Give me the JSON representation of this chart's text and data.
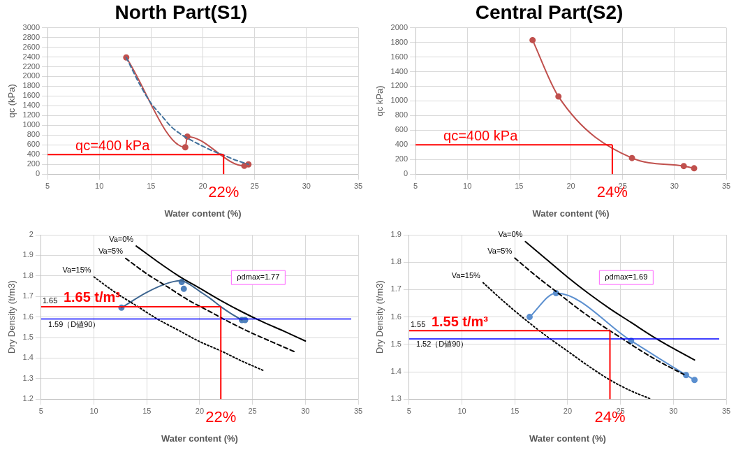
{
  "chart_data": [
    {
      "type": "line",
      "title": "North Part(S1)",
      "xlabel": "Water content (%)",
      "ylabel": "qc (kPa)",
      "xlim": [
        5,
        35
      ],
      "xticks": [
        5,
        10,
        15,
        20,
        25,
        30,
        35
      ],
      "ylim": [
        0,
        3000
      ],
      "yticks": [
        0,
        200,
        400,
        600,
        800,
        1000,
        1200,
        1400,
        1600,
        1800,
        2000,
        2200,
        2400,
        2600,
        2800,
        3000
      ],
      "grid": true,
      "series": [
        {
          "color": "#41719c",
          "marker": "none",
          "line_style": "dashed",
          "x": [
            12.6,
            14,
            15,
            16,
            17,
            18,
            19,
            20,
            21,
            22,
            23,
            24.4
          ],
          "values": [
            2390,
            1800,
            1450,
            1200,
            960,
            800,
            680,
            570,
            470,
            390,
            300,
            200
          ]
        },
        {
          "color": "#c0504d",
          "marker": "circle",
          "line_style": "solid",
          "x": [
            12.6,
            18.3,
            18.5,
            24.0,
            24.4
          ],
          "values": [
            2390,
            550,
            770,
            170,
            200
          ]
        }
      ],
      "ref_lines": [
        {
          "axis": "y",
          "value": 400,
          "label": "qc=400 kPa",
          "color": "#ff0000"
        },
        {
          "axis": "x",
          "value": 22,
          "label": "22%",
          "color": "#ff0000"
        }
      ]
    },
    {
      "type": "line",
      "title": "Central Part(S2)",
      "xlabel": "Water content (%)",
      "ylabel": "qc kPa)",
      "xlim": [
        5,
        35
      ],
      "xticks": [
        5,
        10,
        15,
        20,
        25,
        30,
        35
      ],
      "ylim": [
        0,
        2000
      ],
      "yticks": [
        0,
        200,
        400,
        600,
        800,
        1000,
        1200,
        1400,
        1600,
        1800,
        2000
      ],
      "grid": true,
      "series": [
        {
          "color": "#c0504d",
          "marker": "circle",
          "line_style": "solid",
          "x": [
            16.3,
            18.8,
            25.9,
            30.9,
            31.9
          ],
          "values": [
            1830,
            1060,
            220,
            110,
            80
          ]
        }
      ],
      "ref_lines": [
        {
          "axis": "y",
          "value": 400,
          "label": "qc=400 kPa",
          "color": "#ff0000"
        },
        {
          "axis": "x",
          "value": 24,
          "label": "24%",
          "color": "#ff0000"
        }
      ]
    },
    {
      "type": "scatter",
      "xlabel": "Water content (%)",
      "ylabel": "Dry Density (t/m3)",
      "xlim": [
        5,
        35
      ],
      "xticks": [
        5,
        10,
        15,
        20,
        25,
        30,
        35
      ],
      "ylim": [
        1.2,
        2
      ],
      "yticks": [
        1.2,
        1.3,
        1.4,
        1.5,
        1.6,
        1.7,
        1.8,
        1.9,
        2
      ],
      "grid": true,
      "series": [
        {
          "type": "line",
          "name": "Va=0%",
          "color": "#000000",
          "marker": "none",
          "line_style": "solid",
          "x": [
            14,
            16,
            18,
            20,
            22,
            24,
            26,
            28,
            30
          ],
          "values": [
            1.945,
            1.87,
            1.8,
            1.74,
            1.68,
            1.625,
            1.575,
            1.53,
            1.483
          ]
        },
        {
          "type": "line",
          "name": "Va=5%",
          "color": "#000000",
          "marker": "none",
          "line_style": "dashed",
          "x": [
            13,
            15,
            17,
            19,
            21,
            23,
            25,
            27,
            29
          ],
          "values": [
            1.885,
            1.81,
            1.745,
            1.68,
            1.625,
            1.57,
            1.52,
            1.475,
            1.43
          ]
        },
        {
          "type": "line",
          "name": "Va=15%",
          "color": "#000000",
          "marker": "none",
          "line_style": "dotted",
          "x": [
            10,
            12,
            14,
            16,
            18,
            20,
            22,
            24,
            26
          ],
          "values": [
            1.795,
            1.72,
            1.655,
            1.59,
            1.535,
            1.48,
            1.435,
            1.385,
            1.34
          ]
        },
        {
          "type": "line",
          "color": "#3d6590",
          "marker": "none",
          "line_style": "solid",
          "x": [
            12.6,
            15,
            17,
            18.2,
            19,
            20,
            21,
            22,
            23,
            24.0
          ],
          "values": [
            1.645,
            1.72,
            1.765,
            1.777,
            1.76,
            1.725,
            1.69,
            1.65,
            1.615,
            1.585
          ]
        },
        {
          "type": "scatter",
          "color": "#4f81bd",
          "marker": "circle",
          "x": [
            12.6,
            18.3,
            18.5,
            24.0,
            24.3
          ],
          "values": [
            1.645,
            1.77,
            1.737,
            1.585,
            1.585
          ]
        }
      ],
      "ref_lines": [
        {
          "axis": "y",
          "value": 1.59,
          "label": "1.59（D値90）",
          "color": "#0000ff"
        },
        {
          "axis": "y",
          "value": 1.65,
          "label": "1.65 t/m³",
          "color": "#ff0000"
        },
        {
          "axis": "x",
          "value": 22,
          "label": "22%",
          "color": "#ff0000"
        }
      ],
      "annotations": [
        {
          "text": "1.65",
          "x": 5,
          "y": 1.65
        },
        "ρdmax=1.77"
      ]
    },
    {
      "type": "line",
      "xlabel": "Water content (%)",
      "ylabel": "Dry Density (t/m3)",
      "xlim": [
        5,
        35
      ],
      "xticks": [
        5,
        10,
        15,
        20,
        25,
        30,
        35
      ],
      "ylim": [
        1.3,
        1.9
      ],
      "yticks": [
        1.3,
        1.4,
        1.5,
        1.6,
        1.7,
        1.8,
        1.9
      ],
      "grid": true,
      "series": [
        {
          "name": "Va=0%",
          "color": "#000000",
          "marker": "none",
          "line_style": "solid",
          "x": [
            16,
            18,
            20,
            22,
            24,
            26,
            28,
            30,
            32
          ],
          "values": [
            1.875,
            1.81,
            1.745,
            1.685,
            1.63,
            1.58,
            1.53,
            1.485,
            1.443
          ]
        },
        {
          "name": "Va=5%",
          "color": "#000000",
          "marker": "none",
          "line_style": "dashed",
          "x": [
            15,
            17,
            19,
            21,
            23,
            25,
            27,
            29,
            31
          ],
          "values": [
            1.815,
            1.75,
            1.69,
            1.63,
            1.575,
            1.525,
            1.475,
            1.43,
            1.39
          ]
        },
        {
          "name": "Va=15%",
          "color": "#000000",
          "marker": "none",
          "line_style": "dotted",
          "x": [
            12,
            14,
            16,
            18,
            20,
            22,
            24,
            26,
            27.9
          ],
          "values": [
            1.725,
            1.655,
            1.59,
            1.53,
            1.475,
            1.42,
            1.37,
            1.33,
            1.3
          ]
        },
        {
          "color": "#5b8fcf",
          "marker": "circle",
          "line_style": "solid",
          "x": [
            16.4,
            18.9,
            26.0,
            31.2,
            32.0
          ],
          "values": [
            1.6,
            1.687,
            1.513,
            1.388,
            1.37
          ]
        }
      ],
      "ref_lines": [
        {
          "axis": "y",
          "value": 1.52,
          "label": "1.52（D値90）",
          "color": "#0000ff"
        },
        {
          "axis": "y",
          "value": 1.55,
          "label": "1.55 t/m³",
          "color": "#ff0000"
        },
        {
          "axis": "x",
          "value": 24,
          "label": "24%",
          "color": "#ff0000"
        }
      ],
      "annotations": [
        {
          "text": "1.55",
          "x": 5,
          "y": 1.55
        },
        "ρdmax=1.69"
      ]
    }
  ]
}
